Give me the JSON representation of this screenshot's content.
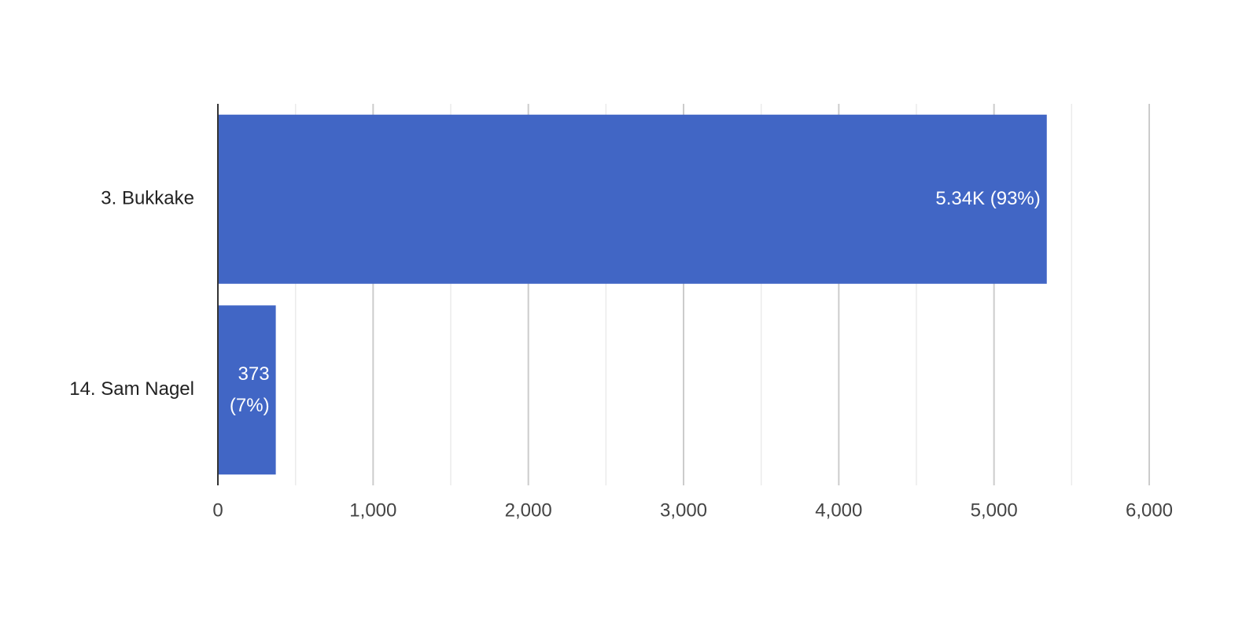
{
  "chart_data": {
    "type": "bar",
    "orientation": "horizontal",
    "categories": [
      "3. Bukkake",
      "14. Sam Nagel"
    ],
    "values": [
      5340,
      373
    ],
    "value_labels": [
      "5.34K (93%)",
      "373 (7%)"
    ],
    "color": "#4166c5",
    "xlim": [
      0,
      6000
    ],
    "xticks": [
      0,
      {
        "value": 1000,
        "label": "1,000"
      },
      {
        "value": 2000,
        "label": "2,000"
      },
      {
        "value": 3000,
        "label": "3,000"
      },
      {
        "value": 4000,
        "label": "4,000"
      },
      {
        "value": 5000,
        "label": "5,000"
      },
      {
        "value": 6000,
        "label": "6,000"
      }
    ],
    "minor_gridlines": [
      500,
      1500,
      2500,
      3500,
      4500,
      5500
    ],
    "grid": true
  }
}
